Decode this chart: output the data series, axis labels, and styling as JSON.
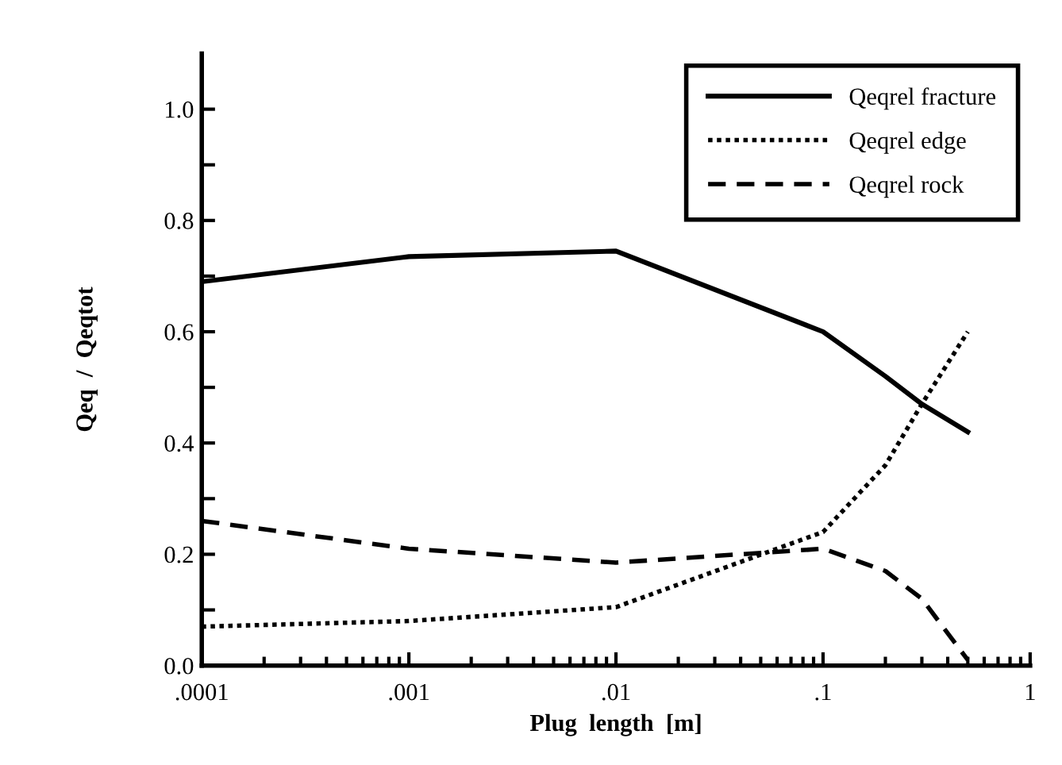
{
  "chart_data": {
    "type": "line",
    "xlabel": "Plug  length  [m]",
    "ylabel": "Qeq  /  Qeqtot",
    "log": "x",
    "x": [
      0.0001,
      0.001,
      0.01,
      0.1,
      0.2,
      0.3,
      0.5
    ],
    "series": [
      {
        "name": "Qeqrel fracture",
        "color": "#000000",
        "line_style": "solid",
        "values": [
          0.69,
          0.735,
          0.745,
          0.6,
          0.52,
          0.47,
          0.42
        ]
      },
      {
        "name": "Qeqrel edge",
        "color": "#000000",
        "line_style": "dotted",
        "values": [
          0.07,
          0.08,
          0.105,
          0.24,
          0.36,
          0.47,
          0.6
        ]
      },
      {
        "name": "Qeqrel rock",
        "color": "#000000",
        "line_style": "dashed",
        "values": [
          0.26,
          0.21,
          0.185,
          0.21,
          0.17,
          0.12,
          0.01
        ]
      }
    ],
    "xlim": [
      0.0001,
      1
    ],
    "xticks": [
      {
        "value": 0.0001,
        "label": ".0001"
      },
      {
        "value": 0.001,
        "label": ".001"
      },
      {
        "value": 0.01,
        "label": ".01"
      },
      {
        "value": 0.1,
        "label": ".1"
      },
      1
    ],
    "ylim": [
      0,
      1.1
    ],
    "yticks": [
      {
        "value": 0,
        "label": "0.0"
      },
      {
        "value": 0.1,
        "label": null
      },
      {
        "value": 0.2,
        "label": "0.2"
      },
      {
        "value": 0.3,
        "label": null
      },
      {
        "value": 0.4,
        "label": "0.4"
      },
      {
        "value": 0.5,
        "label": null
      },
      {
        "value": 0.6,
        "label": "0.6"
      },
      {
        "value": 0.7,
        "label": null
      },
      {
        "value": 0.8,
        "label": "0.8"
      },
      {
        "value": 0.9,
        "label": null
      },
      {
        "value": 1.0,
        "label": "1.0"
      }
    ],
    "legend": "top right",
    "grid": false
  }
}
